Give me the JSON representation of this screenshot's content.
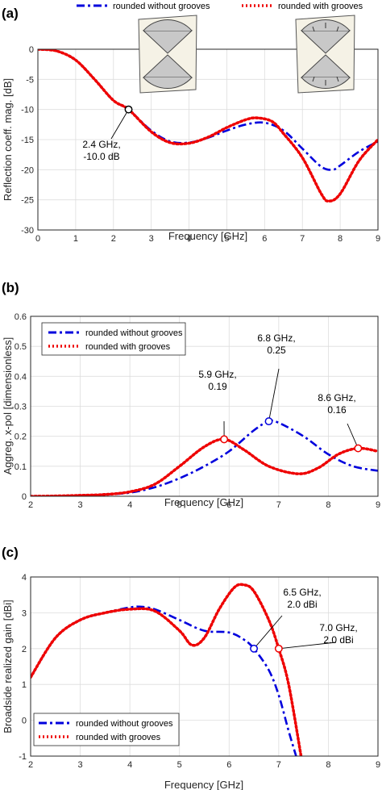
{
  "colors": {
    "blue": "#0000dd",
    "red": "#ee0000",
    "grid": "#dddddd",
    "axis": "#262626"
  },
  "chart_data": [
    {
      "type": "line",
      "panel_label": "(a)",
      "xlabel": "Frequency [GHz]",
      "ylabel": "Reflection coeff. mag. [dB]",
      "xlim": [
        0,
        9
      ],
      "ylim": [
        -30,
        0
      ],
      "xticks": [
        "0",
        "1",
        "2",
        "3",
        "4",
        "5",
        "6",
        "7",
        "8",
        "9"
      ],
      "yticks": [
        "0",
        "-5",
        "-10",
        "-15",
        "-20",
        "-25",
        "-30"
      ],
      "grid": true,
      "legend": "top, outside plot",
      "series": [
        {
          "name": "rounded without grooves",
          "color": "blue",
          "style": "dashdot",
          "x": [
            0,
            0.5,
            1,
            1.5,
            2,
            2.4,
            3,
            3.5,
            4,
            4.5,
            5,
            5.5,
            6,
            6.5,
            7,
            7.5,
            7.8,
            8,
            8.5,
            9
          ],
          "y": [
            0,
            -0.3,
            -1.8,
            -5,
            -8.5,
            -10,
            -13.5,
            -15.3,
            -15.5,
            -14.7,
            -13.5,
            -12.5,
            -12.2,
            -13.5,
            -16.5,
            -19.5,
            -20,
            -19.3,
            -17,
            -15.3
          ]
        },
        {
          "name": "rounded with grooves",
          "color": "red",
          "style": "dotted",
          "x": [
            0,
            0.5,
            1,
            1.5,
            2,
            2.4,
            3,
            3.5,
            4,
            4.5,
            5,
            5.5,
            5.8,
            6.2,
            6.5,
            7,
            7.5,
            7.7,
            8,
            8.5,
            9
          ],
          "y": [
            0,
            -0.3,
            -1.8,
            -5,
            -8.5,
            -10,
            -13.7,
            -15.5,
            -15.6,
            -14.6,
            -13,
            -11.7,
            -11.4,
            -12,
            -14,
            -18,
            -24,
            -25.2,
            -24,
            -18.5,
            -15
          ]
        }
      ],
      "annotations": [
        {
          "x": 2.4,
          "y": -10,
          "lines": [
            "2.4 GHz,",
            "-10.0 dB"
          ]
        }
      ]
    },
    {
      "type": "line",
      "panel_label": "(b)",
      "xlabel": "Frequency [GHz]",
      "ylabel": "Aggreg. x-pol [dimensionless]",
      "xlim": [
        2,
        9
      ],
      "ylim": [
        0,
        0.6
      ],
      "xticks": [
        "2",
        "3",
        "4",
        "5",
        "6",
        "7",
        "8",
        "9"
      ],
      "yticks": [
        "0",
        "0.1",
        "0.2",
        "0.3",
        "0.4",
        "0.5",
        "0.6"
      ],
      "grid": true,
      "legend": "top-left",
      "series": [
        {
          "name": "rounded without grooves",
          "color": "blue",
          "style": "dashdot",
          "x": [
            2,
            2.5,
            3,
            3.5,
            4,
            4.5,
            5,
            5.5,
            6,
            6.5,
            6.8,
            7,
            7.5,
            8,
            8.5,
            9
          ],
          "y": [
            0,
            0.001,
            0.003,
            0.006,
            0.012,
            0.03,
            0.06,
            0.1,
            0.15,
            0.22,
            0.25,
            0.245,
            0.2,
            0.14,
            0.1,
            0.085
          ]
        },
        {
          "name": "rounded with grooves",
          "color": "red",
          "style": "dotted",
          "x": [
            2,
            2.5,
            3,
            3.5,
            4,
            4.5,
            5,
            5.5,
            5.9,
            6.3,
            6.8,
            7.4,
            7.8,
            8.2,
            8.6,
            9
          ],
          "y": [
            0,
            0.001,
            0.003,
            0.006,
            0.015,
            0.04,
            0.1,
            0.165,
            0.19,
            0.155,
            0.1,
            0.075,
            0.095,
            0.14,
            0.16,
            0.15
          ]
        }
      ],
      "annotations": [
        {
          "x": 5.9,
          "y": 0.19,
          "lines": [
            "5.9 GHz,",
            "0.19"
          ]
        },
        {
          "x": 6.8,
          "y": 0.25,
          "lines": [
            "6.8 GHz,",
            "0.25"
          ]
        },
        {
          "x": 8.6,
          "y": 0.16,
          "lines": [
            "8.6 GHz,",
            "0.16"
          ]
        }
      ]
    },
    {
      "type": "line",
      "panel_label": "(c)",
      "xlabel": "Frequency [GHz]",
      "ylabel": "Broadside realized gain [dBi]",
      "xlim": [
        2,
        9
      ],
      "ylim": [
        -1,
        4
      ],
      "xticks": [
        "2",
        "3",
        "4",
        "5",
        "6",
        "7",
        "8",
        "9"
      ],
      "yticks": [
        "4",
        "3",
        "2",
        "1",
        "0",
        "-1"
      ],
      "grid": true,
      "legend": "bottom-left",
      "series": [
        {
          "name": "rounded without grooves",
          "color": "blue",
          "style": "dashdot",
          "x": [
            2,
            2.5,
            3,
            3.5,
            4,
            4.2,
            4.5,
            5,
            5.5,
            6,
            6.3,
            6.5,
            6.8,
            7,
            7.2,
            7.35
          ],
          "y": [
            1.2,
            2.3,
            2.8,
            3,
            3.15,
            3.17,
            3.1,
            2.8,
            2.5,
            2.45,
            2.25,
            2,
            1.4,
            0.7,
            -0.3,
            -1
          ]
        },
        {
          "name": "rounded with grooves",
          "color": "red",
          "style": "dotted",
          "x": [
            2,
            2.5,
            3,
            3.5,
            4,
            4.5,
            5,
            5.25,
            5.5,
            5.8,
            6.1,
            6.3,
            6.5,
            6.8,
            7,
            7.2,
            7.45
          ],
          "y": [
            1.2,
            2.3,
            2.8,
            3,
            3.1,
            3.05,
            2.5,
            2.1,
            2.3,
            3.1,
            3.7,
            3.78,
            3.6,
            2.8,
            2,
            1,
            -1
          ]
        }
      ],
      "annotations": [
        {
          "x": 6.5,
          "y": 2.0,
          "lines": [
            "6.5 GHz,",
            "2.0 dBi"
          ]
        },
        {
          "x": 7.0,
          "y": 2.0,
          "lines": [
            "7.0 GHz,",
            "2.0 dBi"
          ]
        }
      ]
    }
  ]
}
